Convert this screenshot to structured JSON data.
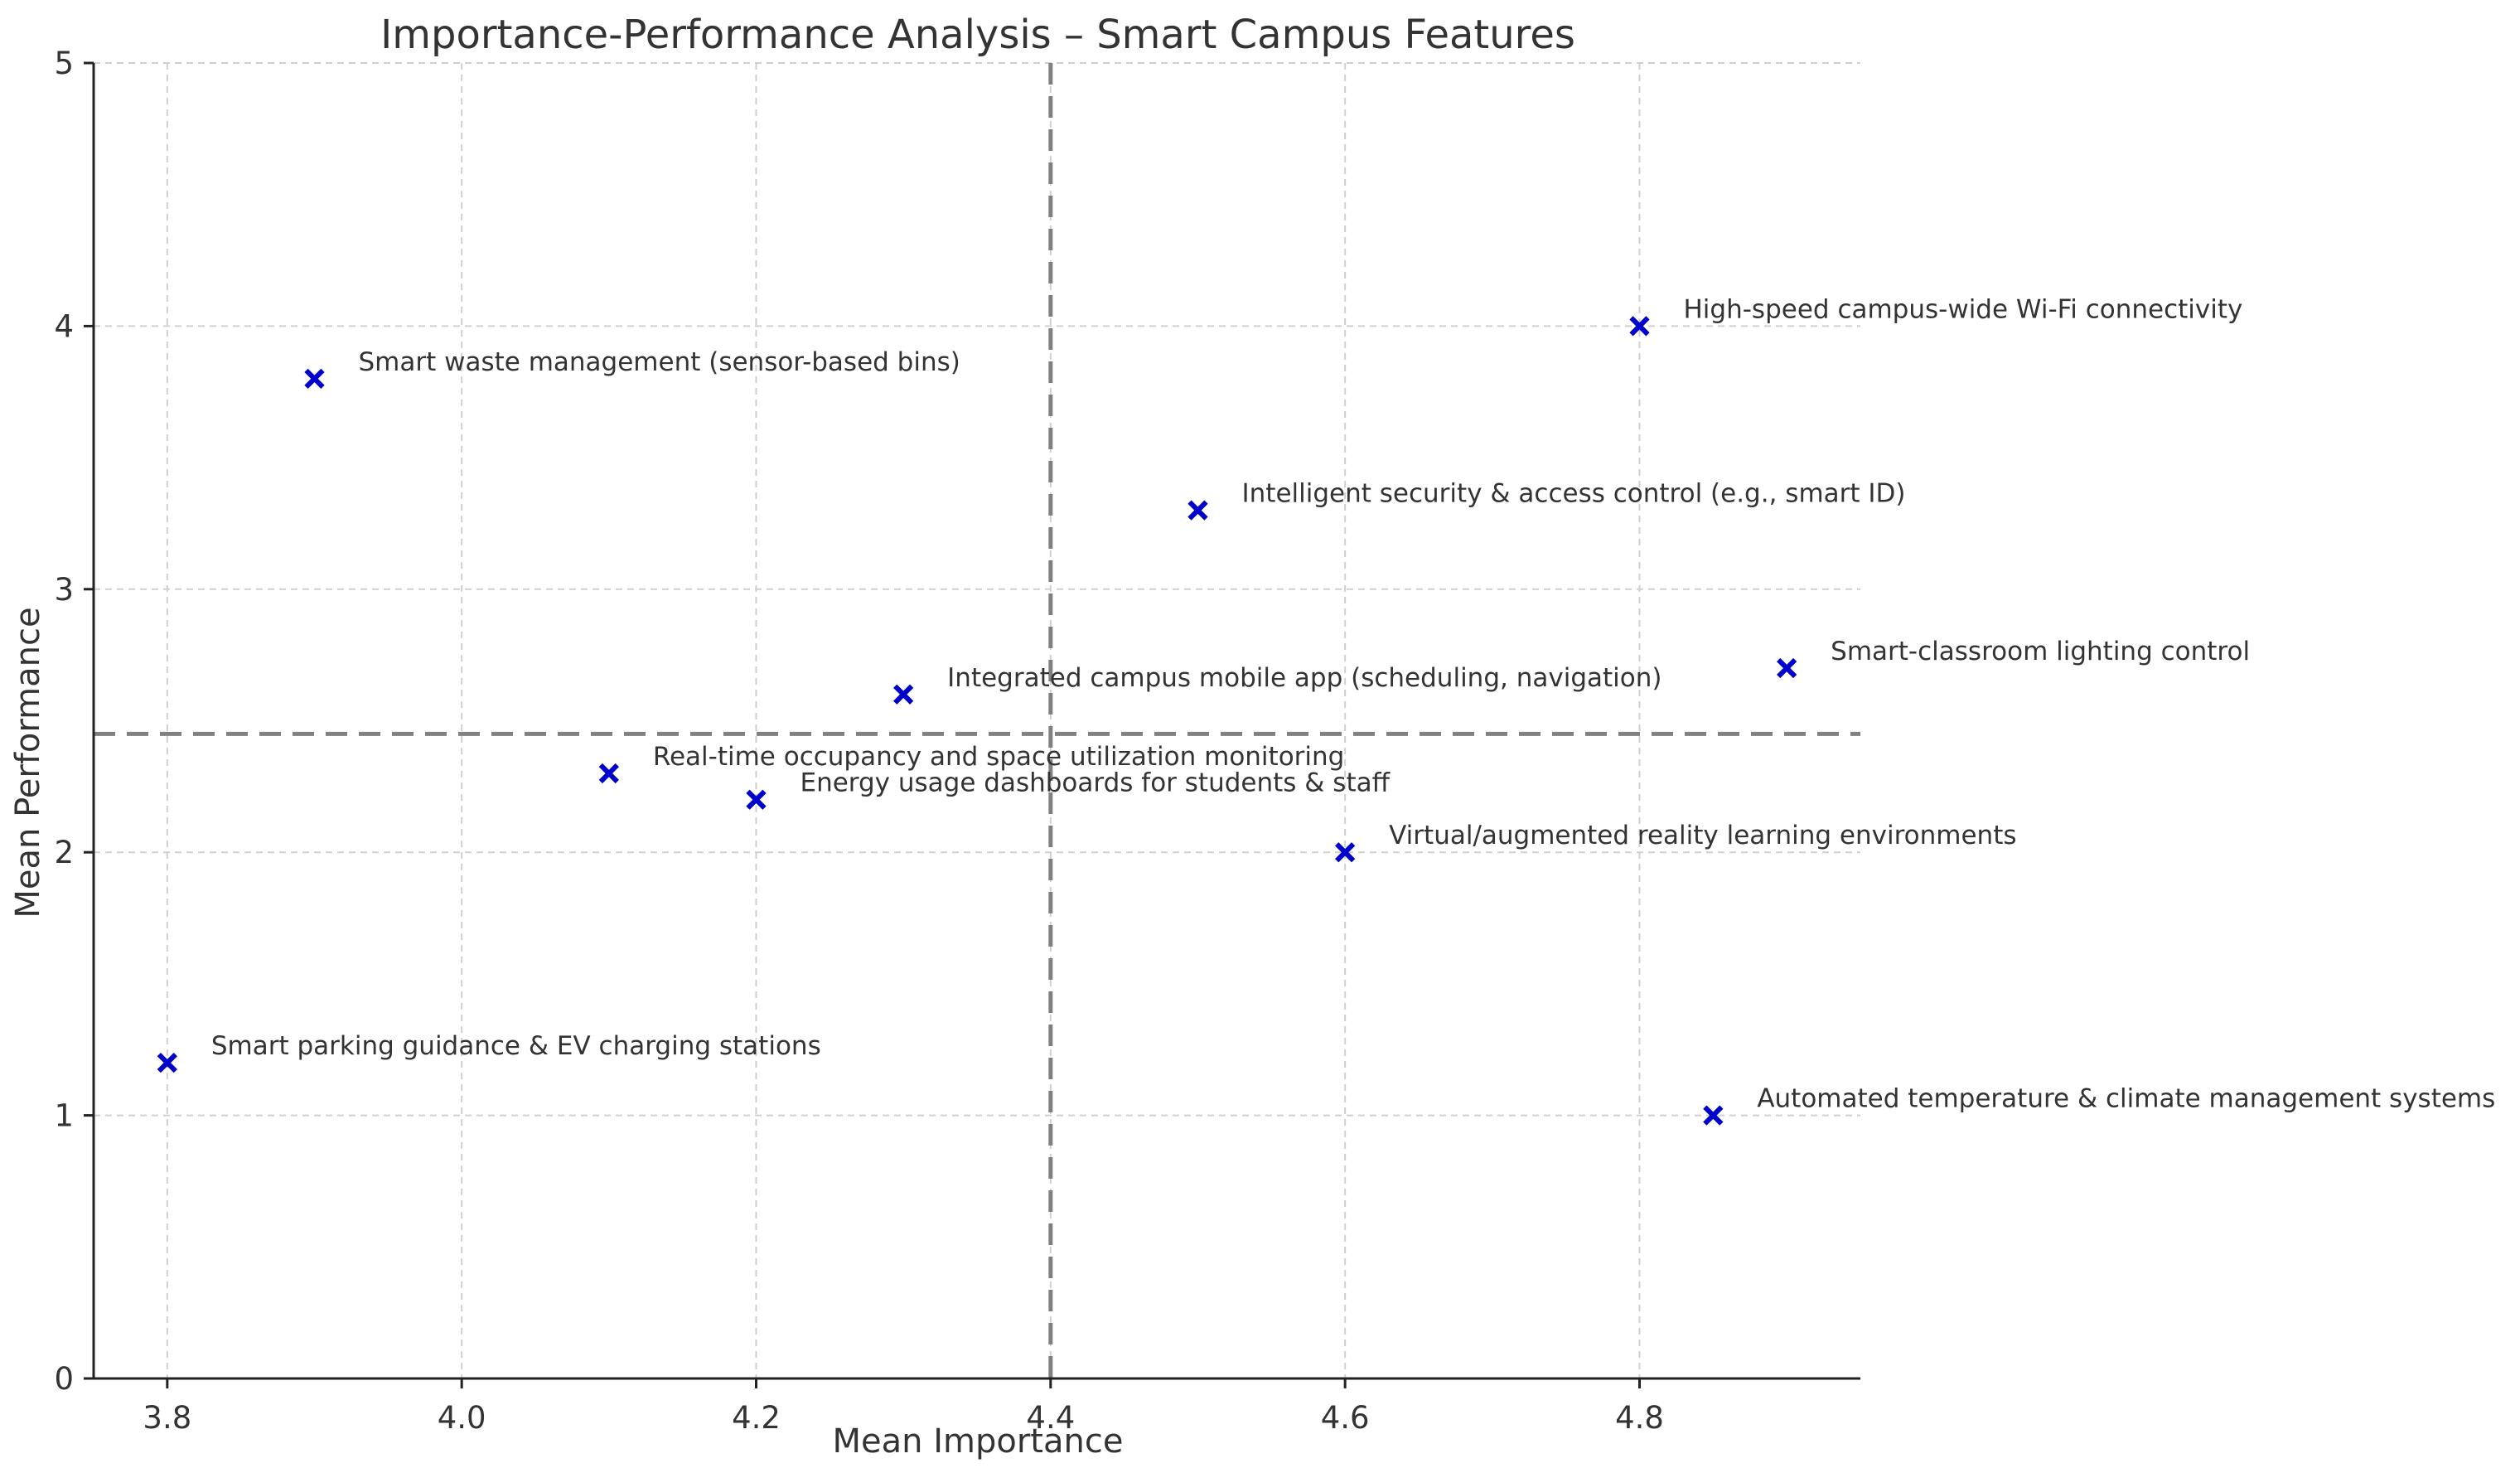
{
  "chart_data": {
    "type": "scatter",
    "title": "Importance-Performance Analysis – Smart Campus Features",
    "xlabel": "Mean Importance",
    "ylabel": "Mean Performance",
    "xlim": [
      3.75,
      4.95
    ],
    "ylim": [
      0,
      5
    ],
    "x_ticks": [
      3.8,
      4.0,
      4.2,
      4.4,
      4.6,
      4.8
    ],
    "x_tick_labels": [
      "3.8",
      "4.0",
      "4.2",
      "4.4",
      "4.6",
      "4.8"
    ],
    "y_ticks": [
      0,
      1,
      2,
      3,
      4,
      5
    ],
    "y_tick_labels": [
      "0",
      "1",
      "2",
      "3",
      "4",
      "5"
    ],
    "grid": true,
    "reference_lines": {
      "vertical_x": 4.4,
      "horizontal_y": 2.45
    },
    "marker": "x",
    "marker_color": "#0000cc",
    "points": [
      {
        "label": "Smart waste management (sensor-based bins)",
        "x": 3.9,
        "y": 3.8
      },
      {
        "label": "High-speed campus-wide Wi-Fi connectivity",
        "x": 4.8,
        "y": 4.0
      },
      {
        "label": "Intelligent security & access control (e.g., smart ID)",
        "x": 4.5,
        "y": 3.3
      },
      {
        "label": "Integrated campus mobile app (scheduling, navigation)",
        "x": 4.3,
        "y": 2.6
      },
      {
        "label": "Smart-classroom lighting control",
        "x": 4.9,
        "y": 2.7
      },
      {
        "label": "Real-time occupancy and space utilization monitoring",
        "x": 4.1,
        "y": 2.3
      },
      {
        "label": "Energy usage dashboards for students & staff",
        "x": 4.2,
        "y": 2.2
      },
      {
        "label": "Virtual/augmented reality learning environments",
        "x": 4.6,
        "y": 2.0
      },
      {
        "label": "Smart parking guidance & EV charging stations",
        "x": 3.8,
        "y": 1.2
      },
      {
        "label": "Automated temperature & climate management systems",
        "x": 4.85,
        "y": 1.0
      }
    ]
  }
}
